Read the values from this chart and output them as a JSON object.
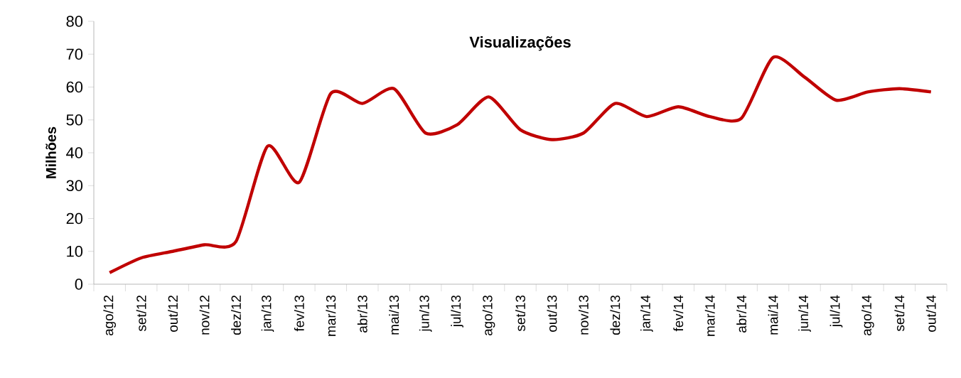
{
  "chart_data": {
    "type": "line",
    "title": "Visualizações",
    "ylabel": "Milhões",
    "categories": [
      "ago/12",
      "set/12",
      "out/12",
      "nov/12",
      "dez/12",
      "jan/13",
      "fev/13",
      "mar/13",
      "abr/13",
      "mai/13",
      "jun/13",
      "jul/13",
      "ago/13",
      "set/13",
      "out/13",
      "nov/13",
      "dez/13",
      "jan/14",
      "fev/14",
      "mar/14",
      "abr/14",
      "mai/14",
      "jun/14",
      "jul/14",
      "ago/14",
      "set/14",
      "out/14"
    ],
    "series": [
      {
        "color": "#c00000",
        "values": [
          3.5,
          8,
          10,
          12,
          13,
          42,
          31,
          58,
          55,
          59.5,
          46,
          48.5,
          57,
          47,
          44,
          46,
          55,
          51,
          54,
          51,
          50.5,
          69,
          63,
          56,
          58.5,
          59.5,
          58.5
        ]
      }
    ],
    "ylim": [
      0,
      80
    ],
    "yticks": [
      0,
      10,
      20,
      30,
      40,
      50,
      60,
      70,
      80
    ],
    "grid": false,
    "marker": "none",
    "line_style": "solid"
  }
}
